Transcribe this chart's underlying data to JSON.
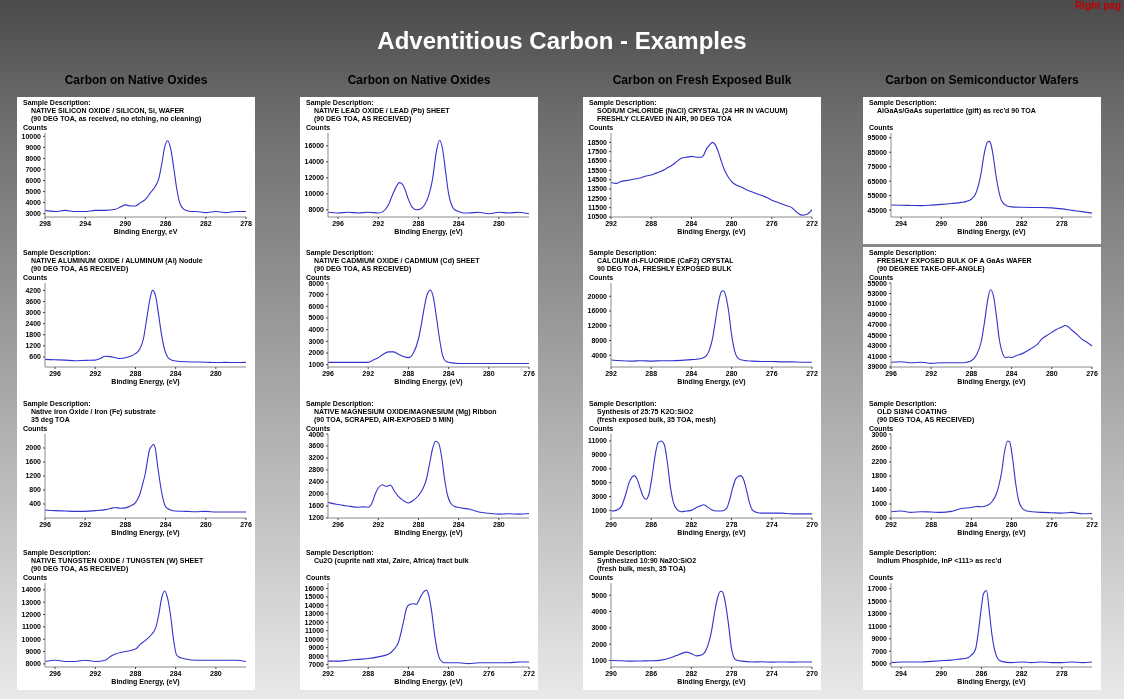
{
  "chart_data": [
    {
      "type": "other",
      "title": "Adventitious Carbon - Examples",
      "annotations": [
        "Carbon on Native Oxides",
        "Carbon on Native Oxides",
        "Carbon on Fresh Exposed Bulk",
        "Carbon on Semiconductor Wafers",
        "Right pag"
      ]
    },
    {
      "type": "line",
      "annotations": [
        "Sample Description:"
      ],
      "title": "NATIVE SILICON OXIDE / SILICON, Si, WAFER",
      "subtitle": "(90 DEG TOA, as received, no etching, no cleaning)",
      "ylabel": "Counts",
      "xlabel": "Binding Energy, eV",
      "color": "#3333cc",
      "xlim": [
        298,
        278
      ],
      "xticks": [
        298,
        294,
        290,
        286,
        282,
        278
      ],
      "ylim": [
        2700,
        10300
      ],
      "yticks": [
        3000,
        4000,
        5000,
        6000,
        7000,
        8000,
        9000,
        10000
      ],
      "x": [
        298,
        297,
        296,
        295,
        294,
        293,
        292,
        291,
        290.5,
        290,
        289.5,
        289,
        288.5,
        288,
        287.5,
        287,
        286.7,
        286.4,
        286.1,
        285.8,
        285.5,
        285.2,
        284.9,
        284.6,
        284.3,
        284,
        283.5,
        283,
        282,
        281,
        280,
        279,
        278
      ],
      "values": [
        3300,
        3200,
        3300,
        3200,
        3200,
        3300,
        3300,
        3400,
        3600,
        3800,
        3700,
        3700,
        4000,
        4300,
        4900,
        5500,
        6100,
        7400,
        9000,
        9600,
        8900,
        7200,
        5300,
        4000,
        3500,
        3300,
        3200,
        3200,
        3100,
        3200,
        3100,
        3200,
        3200
      ]
    },
    {
      "type": "line",
      "annotations": [
        "Sample Description:"
      ],
      "title": "NATIVE LEAD OXIDE / LEAD (Pb) SHEET",
      "subtitle": "(90 DEG TOA, AS RECEIVED)",
      "ylabel": "Counts",
      "xlabel": "Binding Energy, (eV)",
      "color": "#3333cc",
      "xlim": [
        297,
        277
      ],
      "xticks": [
        296,
        292,
        288,
        284,
        280
      ],
      "ylim": [
        7100,
        17600
      ],
      "yticks": [
        8000,
        10000,
        12000,
        14000,
        16000
      ],
      "x": [
        297,
        296,
        295,
        294,
        293,
        292,
        291.5,
        291,
        290.6,
        290.2,
        289.9,
        289.6,
        289.3,
        289,
        288.6,
        288.2,
        287.8,
        287.4,
        287,
        286.6,
        286.2,
        285.9,
        285.6,
        285.3,
        285,
        284.7,
        284.4,
        284,
        283.5,
        283,
        282,
        281,
        280,
        279,
        278,
        277
      ],
      "values": [
        7700,
        7600,
        7700,
        7600,
        7700,
        7600,
        7800,
        8600,
        9800,
        10900,
        11400,
        11200,
        10400,
        9300,
        8300,
        8000,
        8100,
        8600,
        9700,
        11800,
        15400,
        16700,
        15600,
        12800,
        10000,
        8600,
        8000,
        7800,
        7600,
        7600,
        7700,
        7500,
        7700,
        7600,
        7700,
        7500
      ]
    },
    {
      "type": "line",
      "annotations": [
        "Sample Description:"
      ],
      "title": "SODIUM CHLORIDE (NaCl) CRYSTAL (24 HR IN VACUUM)",
      "subtitle": "FRESHLY CLEAVED IN AIR, 90 DEG TOA",
      "ylabel": "Counts",
      "xlabel": "Binding Energy, (eV)",
      "color": "#3333cc",
      "xlim": [
        292,
        272
      ],
      "xticks": [
        292,
        288,
        284,
        280,
        276,
        272
      ],
      "ylim": [
        10500,
        19500
      ],
      "yticks": [
        10500,
        11500,
        12500,
        13500,
        14500,
        15500,
        16500,
        17500,
        18500
      ],
      "x": [
        292,
        291.5,
        291,
        290.5,
        290,
        289.5,
        289,
        288.5,
        288,
        287.5,
        287,
        286.5,
        286,
        285.5,
        285,
        284.5,
        284,
        283.5,
        283,
        282.8,
        282.5,
        282.2,
        281.9,
        281.6,
        281.3,
        281,
        280.7,
        280.4,
        280,
        279.5,
        279,
        278.5,
        278,
        277.5,
        277,
        276.5,
        276,
        275.5,
        275,
        274.5,
        274,
        273.5,
        273,
        272.5,
        272
      ],
      "values": [
        14200,
        14100,
        14300,
        14400,
        14500,
        14600,
        14700,
        14900,
        15000,
        15200,
        15400,
        15700,
        16000,
        16400,
        16800,
        16900,
        17000,
        16900,
        16900,
        17100,
        17800,
        18200,
        18500,
        18200,
        17400,
        16400,
        15500,
        14900,
        14300,
        13900,
        13700,
        13400,
        13200,
        13000,
        12800,
        12600,
        12300,
        12100,
        11900,
        11700,
        11500,
        11000,
        10700,
        10800,
        11300
      ]
    },
    {
      "type": "line",
      "annotations": [
        "Sample Description:"
      ],
      "title": "AlGaAs/GaAs superlattice (gift) as rec'd 90 TOA",
      "ylabel": "Counts",
      "xlabel": "Binding Energy, (eV)",
      "color": "#3333cc",
      "xlim": [
        295,
        275
      ],
      "xticks": [
        294,
        290,
        286,
        282,
        278
      ],
      "ylim": [
        40200,
        98300
      ],
      "yticks": [
        45000,
        55000,
        65000,
        75000,
        85000,
        95000
      ],
      "x": [
        295,
        294,
        293,
        292,
        291,
        290,
        289,
        288,
        287.5,
        287,
        286.6,
        286.3,
        286,
        285.8,
        285.6,
        285.4,
        285.2,
        285,
        284.8,
        284.6,
        284.3,
        284,
        283.5,
        283,
        282,
        281,
        280,
        279,
        278,
        277,
        276,
        275
      ],
      "values": [
        48500,
        48300,
        48200,
        48100,
        48400,
        48900,
        49500,
        50300,
        51000,
        52500,
        56000,
        62000,
        72000,
        81000,
        88000,
        92000,
        92500,
        89000,
        81000,
        71000,
        59000,
        51500,
        48000,
        47200,
        46900,
        46800,
        46800,
        46500,
        45800,
        44800,
        43900,
        42900
      ]
    },
    {
      "type": "line",
      "annotations": [
        "Sample Description:"
      ],
      "title": "NATIVE ALUMINUM OXIDE / ALUMINUM (Al) Nodule",
      "subtitle": "(90 DEG TOA, AS RECEIVED)",
      "ylabel": "Counts",
      "xlabel": "Binding Energy, (eV)",
      "color": "#3333cc",
      "xlim": [
        297,
        277
      ],
      "xticks": [
        296,
        292,
        288,
        284,
        280
      ],
      "ylim": [
        60,
        4600
      ],
      "yticks": [
        600,
        1200,
        1800,
        2400,
        3000,
        3600,
        4200
      ],
      "x": [
        297,
        296,
        295,
        294,
        293,
        292,
        291.5,
        291,
        290.5,
        290,
        289.5,
        289,
        288.5,
        288,
        287.6,
        287.2,
        286.9,
        286.6,
        286.3,
        286,
        285.7,
        285.4,
        285.1,
        284.8,
        284.5,
        284,
        283,
        282,
        281,
        280,
        279,
        278,
        277
      ],
      "values": [
        470,
        450,
        430,
        400,
        420,
        430,
        520,
        640,
        620,
        560,
        520,
        560,
        640,
        780,
        1000,
        1600,
        2600,
        3600,
        4200,
        3900,
        2900,
        1800,
        1000,
        600,
        460,
        380,
        340,
        330,
        320,
        300,
        310,
        300,
        310
      ]
    },
    {
      "type": "line",
      "annotations": [
        "Sample Description:"
      ],
      "title": "NATIVE CADMIUM OXIDE / CADMIUM (Cd) SHEET",
      "subtitle": "(90 DEG TOA, AS RECEIVED)",
      "ylabel": "Counts",
      "xlabel": "Binding Energy, (eV)",
      "color": "#3333cc",
      "xlim": [
        296,
        276
      ],
      "xticks": [
        296,
        292,
        288,
        284,
        280,
        276
      ],
      "ylim": [
        800,
        8000
      ],
      "yticks": [
        1000,
        2000,
        3000,
        4000,
        5000,
        6000,
        7000,
        8000
      ],
      "x": [
        296,
        295,
        294,
        293,
        292,
        291.5,
        291,
        290.5,
        290,
        289.5,
        289,
        288.5,
        288,
        287.5,
        287,
        286.7,
        286.4,
        286.1,
        285.8,
        285.5,
        285.2,
        284.9,
        284.6,
        284.3,
        284,
        283,
        282,
        281,
        280,
        279,
        278,
        277,
        276
      ],
      "values": [
        1200,
        1200,
        1200,
        1200,
        1200,
        1400,
        1600,
        1900,
        2100,
        2100,
        1900,
        1700,
        1600,
        2000,
        3200,
        4500,
        6000,
        7100,
        7400,
        6700,
        5000,
        3200,
        1800,
        1300,
        1200,
        1100,
        1100,
        1100,
        1100,
        1100,
        1100,
        1100,
        1100
      ]
    },
    {
      "type": "line",
      "annotations": [
        "Sample Description:"
      ],
      "title": "CALCIUM di-FLUORIDE (CaF2) CRYSTAL",
      "subtitle": "90 DEG TOA, FRESHLY EXPOSED BULK",
      "ylabel": "Counts",
      "xlabel": "Binding Energy, (eV)",
      "color": "#3333cc",
      "xlim": [
        292,
        272
      ],
      "xticks": [
        292,
        288,
        284,
        280,
        276,
        272
      ],
      "ylim": [
        800,
        23600
      ],
      "yticks": [
        4000,
        8000,
        12000,
        16000,
        20000
      ],
      "x": [
        292,
        291,
        290,
        289,
        288,
        287,
        286,
        285,
        284,
        283.5,
        283,
        282.5,
        282.2,
        281.9,
        281.6,
        281.3,
        281,
        280.8,
        280.6,
        280.3,
        280,
        279.7,
        279.4,
        279,
        278.5,
        278,
        277,
        276,
        275,
        274,
        273,
        272
      ],
      "values": [
        2700,
        2500,
        2400,
        2500,
        2400,
        2500,
        2500,
        2600,
        2800,
        2900,
        3100,
        3900,
        5500,
        8500,
        13500,
        18500,
        21300,
        21500,
        20300,
        16000,
        9500,
        5200,
        3300,
        2700,
        2500,
        2400,
        2300,
        2300,
        2200,
        2200,
        2100,
        2100
      ]
    },
    {
      "type": "line",
      "annotations": [
        "Sample Description:"
      ],
      "title": "FRESHLY EXPOSED BULK OF A GaAs WAFER",
      "subtitle": "(90 DEGREE TAKE-OFF-ANGLE)",
      "ylabel": "Counts",
      "xlabel": "Binding Energy, (eV)",
      "color": "#3333cc",
      "xlim": [
        296,
        276
      ],
      "xticks": [
        296,
        292,
        288,
        284,
        280,
        276
      ],
      "ylim": [
        39000,
        55000
      ],
      "yticks": [
        39000,
        41000,
        43000,
        45000,
        47000,
        49000,
        51000,
        53000,
        55000
      ],
      "x": [
        296,
        295,
        294,
        293,
        292,
        291,
        290,
        289,
        288.5,
        288,
        287.5,
        287,
        286.7,
        286.4,
        286.1,
        285.8,
        285.5,
        285.2,
        284.9,
        284.6,
        284.3,
        284,
        283.5,
        283,
        282.5,
        282,
        281.5,
        281,
        280.5,
        280,
        279.5,
        279,
        278.7,
        278.4,
        278,
        277.5,
        277,
        276.5,
        276
      ],
      "values": [
        39900,
        40000,
        39800,
        39900,
        39700,
        39800,
        39800,
        39800,
        39900,
        40200,
        41300,
        44000,
        47500,
        51500,
        53700,
        52500,
        48500,
        44000,
        41600,
        40800,
        40900,
        40800,
        41200,
        41500,
        42000,
        42600,
        43200,
        44300,
        45000,
        45600,
        46200,
        46600,
        46900,
        46700,
        46000,
        45200,
        44300,
        43700,
        43000
      ]
    },
    {
      "type": "line",
      "annotations": [
        "Sample Description:"
      ],
      "title": "Native Iron Oxide / Iron (Fe) substrate",
      "subtitle": "35 deg TOA",
      "ylabel": "Counts",
      "xlabel": "Binding Energy, (eV)",
      "color": "#3333cc",
      "xlim": [
        296,
        276
      ],
      "xticks": [
        296,
        292,
        288,
        284,
        280,
        276
      ],
      "ylim": [
        0,
        2400
      ],
      "yticks": [
        400,
        800,
        1200,
        1600,
        2000
      ],
      "x": [
        296,
        295,
        294,
        293,
        292,
        291,
        290,
        289.5,
        289,
        288.5,
        288,
        287.5,
        287,
        286.6,
        286.3,
        286,
        285.8,
        285.6,
        285.4,
        285.2,
        285,
        284.8,
        284.6,
        284.4,
        284.2,
        284,
        283.5,
        283,
        282,
        281,
        280,
        279,
        278,
        277,
        276
      ],
      "values": [
        230,
        210,
        200,
        190,
        190,
        210,
        240,
        270,
        300,
        280,
        290,
        340,
        440,
        650,
        950,
        1300,
        1650,
        1950,
        2050,
        2100,
        1950,
        1500,
        1100,
        750,
        480,
        320,
        230,
        200,
        190,
        180,
        190,
        170,
        170,
        170,
        170
      ]
    },
    {
      "type": "line",
      "annotations": [
        "Sample Description:"
      ],
      "title": "NATIVE MAGNESIUM OXIDE/MAGNESIUM (Mg) Ribbon",
      "subtitle": "(90 TOA, SCRAPED, AIR-EXPOSED 5 MIN)",
      "ylabel": "Counts",
      "xlabel": "Binding Energy, (eV)",
      "color": "#3333cc",
      "xlim": [
        297,
        277
      ],
      "xticks": [
        296,
        292,
        288,
        284,
        280
      ],
      "ylim": [
        1200,
        4000
      ],
      "yticks": [
        1200,
        1600,
        2000,
        2400,
        2800,
        3200,
        3600,
        4000
      ],
      "x": [
        297,
        296.5,
        296,
        295.5,
        295,
        294.5,
        294,
        293.5,
        293,
        292.6,
        292.3,
        292,
        291.6,
        291.2,
        290.8,
        290.4,
        290,
        289.5,
        289,
        288.5,
        288,
        287.6,
        287.2,
        286.9,
        286.6,
        286.3,
        286,
        285.7,
        285.4,
        285.1,
        284.8,
        284.4,
        284,
        283.5,
        283,
        282.5,
        282,
        281,
        280,
        279,
        278,
        277
      ],
      "values": [
        1720,
        1680,
        1650,
        1620,
        1600,
        1570,
        1560,
        1570,
        1560,
        1720,
        2000,
        2200,
        2310,
        2250,
        2300,
        2100,
        1920,
        1780,
        1700,
        1790,
        1950,
        2150,
        2500,
        3000,
        3500,
        3760,
        3700,
        3250,
        2500,
        1950,
        1700,
        1580,
        1550,
        1520,
        1500,
        1450,
        1400,
        1360,
        1330,
        1340,
        1330,
        1350
      ]
    },
    {
      "type": "line",
      "annotations": [
        "Sample Description:"
      ],
      "title": "Synthesis of 25:75 K2O:SiO2",
      "subtitle": "(fresh exposed bulk, 35 TOA, mesh)",
      "ylabel": "Counts",
      "xlabel": "Binding Energy, (eV)",
      "color": "#3333cc",
      "xlim": [
        290,
        270
      ],
      "xticks": [
        290,
        286,
        282,
        278,
        274,
        270
      ],
      "ylim": [
        -100,
        12000
      ],
      "yticks": [
        1000,
        3000,
        5000,
        7000,
        9000,
        11000
      ],
      "x": [
        290,
        289.5,
        289,
        288.5,
        288.2,
        287.9,
        287.7,
        287.4,
        287.1,
        286.8,
        286.5,
        286.2,
        285.9,
        285.6,
        285.3,
        285,
        284.7,
        284.4,
        284.1,
        283.8,
        283.4,
        283,
        282.5,
        282,
        281.5,
        281,
        280.8,
        280.4,
        280,
        279.5,
        279,
        278.5,
        278.2,
        277.9,
        277.6,
        277.3,
        277.1,
        276.8,
        276.5,
        276.2,
        275.9,
        275.5,
        275,
        274,
        273,
        272,
        271,
        270
      ],
      "values": [
        900,
        1000,
        1500,
        3500,
        5000,
        5800,
        6000,
        5500,
        4200,
        3000,
        2600,
        3500,
        6000,
        9000,
        10800,
        11000,
        10500,
        8000,
        4500,
        2200,
        1100,
        800,
        900,
        1000,
        1400,
        1700,
        1800,
        1500,
        1100,
        900,
        900,
        1300,
        2500,
        4200,
        5500,
        5900,
        6000,
        5400,
        3800,
        2000,
        1000,
        700,
        600,
        600,
        600,
        500,
        500,
        500
      ]
    },
    {
      "type": "line",
      "annotations": [
        "Sample Description:"
      ],
      "title": "OLD Si3N4 COATING",
      "subtitle": "(90 DEG TOA, AS RECEIVED)",
      "ylabel": "Counts",
      "xlabel": "Binding Energy, (eV)",
      "color": "#3333cc",
      "xlim": [
        292,
        272
      ],
      "xticks": [
        292,
        288,
        284,
        280,
        276,
        272
      ],
      "ylim": [
        600,
        3000
      ],
      "yticks": [
        600,
        1000,
        1400,
        1800,
        2200,
        2600,
        3000
      ],
      "x": [
        292,
        291,
        290,
        289,
        288,
        287,
        286,
        285,
        284,
        283.5,
        283,
        282.5,
        282,
        281.5,
        281,
        280.7,
        280.4,
        280.2,
        279.9,
        279.6,
        279.3,
        279,
        278.5,
        278,
        277,
        276,
        275,
        274,
        273,
        272
      ],
      "values": [
        780,
        800,
        760,
        780,
        770,
        760,
        790,
        870,
        900,
        930,
        920,
        950,
        1050,
        1300,
        1900,
        2500,
        2800,
        2780,
        2300,
        1600,
        1100,
        900,
        800,
        780,
        760,
        750,
        740,
        760,
        720,
        730
      ]
    },
    {
      "type": "line",
      "annotations": [
        "Sample Description:"
      ],
      "title": "NATIVE TUNGSTEN OXIDE / TUNGSTEN (W) SHEET",
      "subtitle": "(90 DEG TOA, AS RECEIVED)",
      "ylabel": "Counts",
      "xlabel": "Binding Energy, (eV)",
      "color": "#3333cc",
      "xlim": [
        297,
        277
      ],
      "xticks": [
        296,
        292,
        288,
        284,
        280
      ],
      "ylim": [
        7750,
        14550
      ],
      "yticks": [
        8000,
        9000,
        10000,
        11000,
        12000,
        13000,
        14000
      ],
      "x": [
        297,
        296,
        295,
        294,
        293,
        292,
        291,
        290.5,
        290,
        289,
        288,
        287.5,
        287,
        286.5,
        286,
        285.7,
        285.4,
        285.1,
        284.8,
        284.5,
        284.2,
        283.9,
        283.5,
        283,
        282,
        281,
        280,
        279,
        278,
        277
      ],
      "values": [
        8200,
        8300,
        8200,
        8200,
        8300,
        8200,
        8300,
        8600,
        8800,
        9000,
        9200,
        9600,
        9900,
        10300,
        10900,
        11900,
        13300,
        13900,
        13300,
        11900,
        9900,
        8700,
        8500,
        8400,
        8300,
        8300,
        8300,
        8300,
        8300,
        8200
      ]
    },
    {
      "type": "line",
      "annotations": [
        "Sample Description:"
      ],
      "title": "Cu2O (cuprite natl xtal, Zaire, Africa) fract bulk",
      "ylabel": "Counts",
      "xlabel": "Binding Energy, (eV)",
      "color": "#3333cc",
      "xlim": [
        292,
        272
      ],
      "xticks": [
        292,
        288,
        284,
        280,
        276,
        272
      ],
      "ylim": [
        6700,
        16650
      ],
      "yticks": [
        7000,
        8000,
        9000,
        10000,
        11000,
        12000,
        13000,
        14000,
        15000,
        16000
      ],
      "x": [
        292,
        291,
        290,
        289,
        288,
        287,
        286,
        285.5,
        285,
        284.5,
        284.2,
        283.9,
        283.5,
        283.2,
        283,
        282.7,
        282.4,
        282.2,
        282,
        281.7,
        281.4,
        281.1,
        280.8,
        280.4,
        280,
        279,
        278,
        277,
        276,
        275,
        274,
        273,
        272
      ],
      "values": [
        7400,
        7400,
        7500,
        7600,
        7700,
        7900,
        8200,
        8700,
        9600,
        12000,
        13600,
        14100,
        14200,
        14100,
        14500,
        15200,
        15700,
        15800,
        15300,
        13400,
        10600,
        8500,
        7500,
        7200,
        7200,
        7200,
        7100,
        7200,
        7200,
        7200,
        7200,
        7300,
        7300
      ]
    },
    {
      "type": "line",
      "annotations": [
        "Sample Description:"
      ],
      "title": "Synthesized 10:90 Na2O:SiO2",
      "subtitle": "(fresh bulk, mesh, 35 TOA)",
      "ylabel": "Counts",
      "xlabel": "Binding Energy, (eV)",
      "color": "#3333cc",
      "xlim": [
        290,
        270
      ],
      "xticks": [
        290,
        286,
        282,
        278,
        274,
        270
      ],
      "ylim": [
        600,
        5750
      ],
      "yticks": [
        1000,
        2000,
        3000,
        4000,
        5000
      ],
      "x": [
        290,
        289,
        288,
        287,
        286,
        285,
        284,
        283.5,
        283,
        282.5,
        282,
        281.5,
        281,
        280.5,
        280,
        279.7,
        279.4,
        279.1,
        278.9,
        278.6,
        278.3,
        278,
        277.6,
        277,
        276,
        275,
        274,
        273,
        272,
        271,
        270
      ],
      "values": [
        1000,
        980,
        960,
        970,
        980,
        1020,
        1180,
        1300,
        1420,
        1510,
        1420,
        1280,
        1330,
        1700,
        2800,
        3910,
        4830,
        5240,
        5200,
        4460,
        3170,
        1700,
        1050,
        960,
        910,
        920,
        900,
        910,
        900,
        910,
        910
      ]
    },
    {
      "type": "line",
      "annotations": [
        "Sample Description:"
      ],
      "title": "Indium Phosphide, InP <111> as rec'd",
      "ylabel": "Counts",
      "xlabel": "Binding Energy, (eV)",
      "color": "#3333cc",
      "xlim": [
        295,
        275
      ],
      "xticks": [
        294,
        290,
        286,
        282,
        278
      ],
      "ylim": [
        4500,
        17900
      ],
      "yticks": [
        5000,
        7000,
        9000,
        11000,
        13000,
        15000,
        17000
      ],
      "x": [
        295,
        294,
        293,
        292,
        291,
        290,
        289,
        288,
        287.5,
        287,
        286.6,
        286.3,
        286,
        285.8,
        285.5,
        285.2,
        285,
        284.7,
        284.4,
        284,
        283,
        282,
        281,
        280,
        279,
        278,
        277,
        276,
        275
      ],
      "values": [
        5200,
        5300,
        5300,
        5300,
        5400,
        5500,
        5600,
        5800,
        5900,
        6400,
        7300,
        10200,
        14100,
        16200,
        16700,
        13100,
        10200,
        7300,
        5900,
        5400,
        5200,
        5300,
        5200,
        5300,
        5200,
        5200,
        5300,
        5200,
        5300
      ]
    }
  ]
}
